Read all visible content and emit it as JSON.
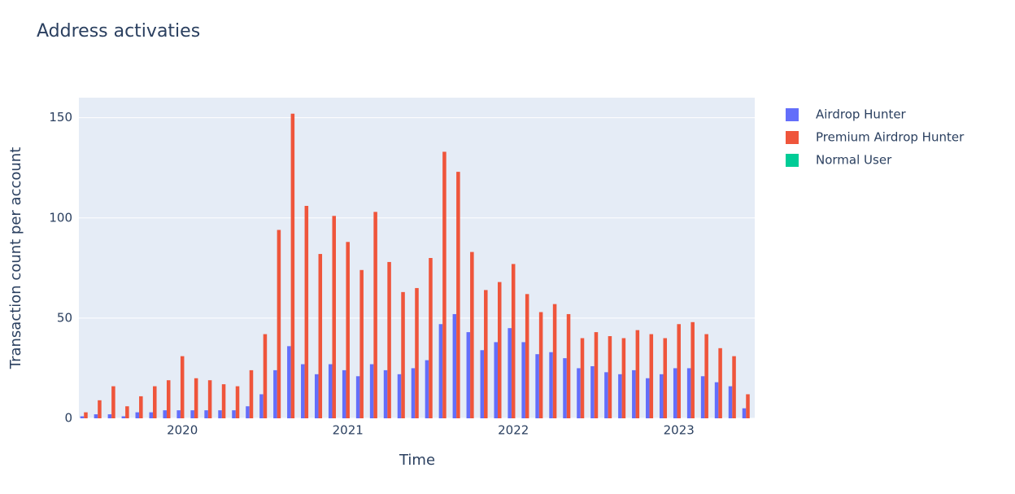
{
  "chart_data": {
    "type": "bar",
    "title": "Address activaties",
    "x_label": "Time",
    "y_label": "Transaction count per account",
    "x": [
      "2019-06",
      "2019-07",
      "2019-08",
      "2019-09",
      "2019-10",
      "2019-11",
      "2019-12",
      "2020-01",
      "2020-02",
      "2020-03",
      "2020-04",
      "2020-05",
      "2020-06",
      "2020-07",
      "2020-08",
      "2020-09",
      "2020-10",
      "2020-11",
      "2020-12",
      "2021-01",
      "2021-02",
      "2021-03",
      "2021-04",
      "2021-05",
      "2021-06",
      "2021-07",
      "2021-08",
      "2021-09",
      "2021-10",
      "2021-11",
      "2021-12",
      "2022-01",
      "2022-02",
      "2022-03",
      "2022-04",
      "2022-05",
      "2022-06",
      "2022-07",
      "2022-08",
      "2022-09",
      "2022-10",
      "2022-11",
      "2022-12",
      "2023-01",
      "2023-02",
      "2023-03",
      "2023-04",
      "2023-05",
      "2023-06"
    ],
    "series": [
      {
        "name": "Airdrop Hunter",
        "color": "#636efa",
        "values": [
          1,
          2,
          2,
          1,
          3,
          3,
          4,
          4,
          4,
          4,
          4,
          4,
          6,
          12,
          24,
          36,
          27,
          22,
          27,
          24,
          21,
          27,
          24,
          22,
          25,
          29,
          47,
          52,
          43,
          34,
          38,
          45,
          38,
          32,
          33,
          30,
          25,
          26,
          23,
          22,
          24,
          20,
          22,
          25,
          25,
          21,
          18,
          16,
          5
        ]
      },
      {
        "name": "Premium Airdrop Hunter",
        "color": "#ef553b",
        "values": [
          3,
          9,
          16,
          6,
          11,
          16,
          19,
          31,
          20,
          19,
          17,
          16,
          24,
          42,
          94,
          152,
          106,
          82,
          101,
          88,
          74,
          103,
          78,
          63,
          65,
          80,
          133,
          123,
          83,
          64,
          68,
          77,
          62,
          53,
          57,
          52,
          40,
          43,
          41,
          40,
          44,
          42,
          40,
          47,
          48,
          42,
          35,
          31,
          12
        ]
      },
      {
        "name": "Normal User",
        "color": "#00cc96",
        "values": [
          0,
          0,
          0,
          0,
          0,
          0,
          0,
          0,
          0,
          0,
          0,
          0,
          0,
          0,
          0,
          0,
          0,
          0,
          0,
          0,
          0,
          0,
          0,
          0,
          0,
          0,
          0,
          0,
          0,
          0,
          0,
          0,
          0,
          0,
          0,
          0,
          0,
          0,
          0,
          0,
          0,
          0,
          0,
          0,
          0,
          0,
          0,
          0,
          0
        ]
      }
    ],
    "xlim": [
      "2019-05-16",
      "2023-06-16"
    ],
    "xticks": [
      {
        "value": "2020-01",
        "label": "2020"
      },
      {
        "value": "2021-01",
        "label": "2021"
      },
      {
        "value": "2022-01",
        "label": "2022"
      },
      {
        "value": "2023-01",
        "label": "2023"
      }
    ],
    "ylim": [
      0,
      160
    ],
    "yticks": [
      0,
      50,
      100,
      150
    ],
    "grid": true,
    "legend": "right"
  }
}
